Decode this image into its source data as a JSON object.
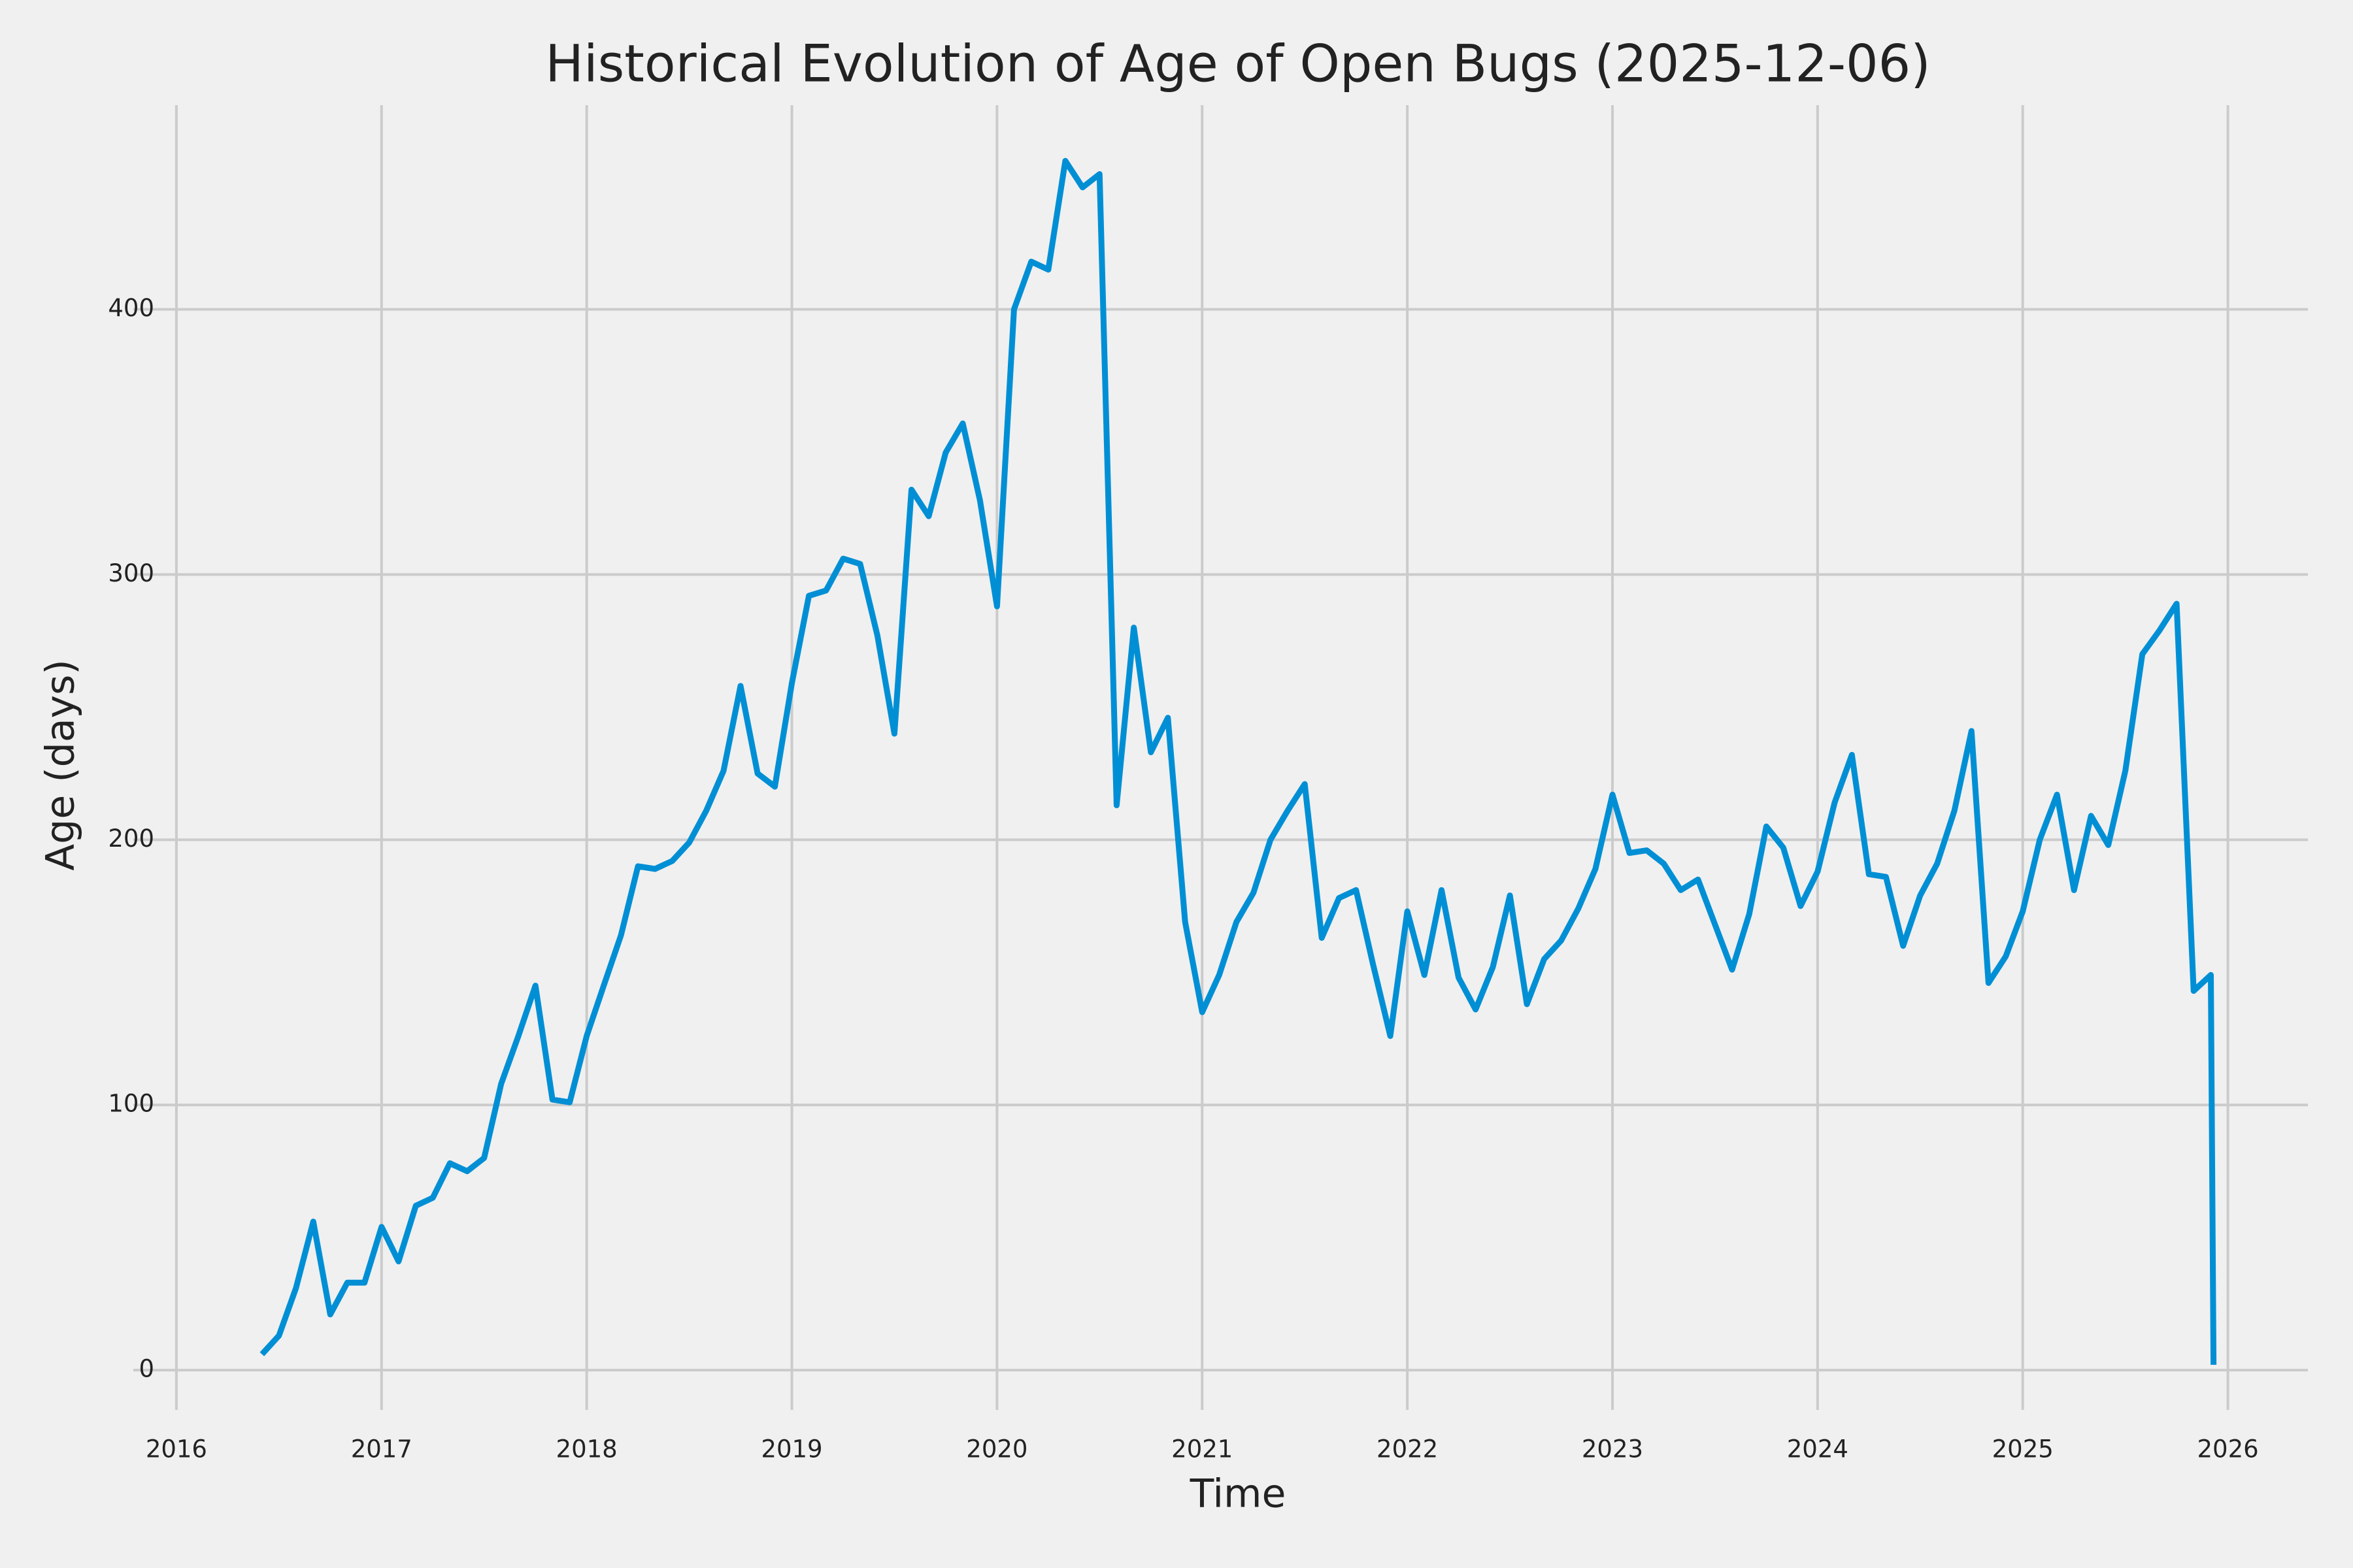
{
  "chart_data": {
    "type": "line",
    "title": "Historical Evolution of Age of Open Bugs (2025-12-06)",
    "x_label": "Time",
    "y_label": "Age (days)",
    "color": "#008fd5",
    "grid": true,
    "xlim": [
      2015.79,
      2026.39
    ],
    "xticks": [
      2016,
      2017,
      2018,
      2019,
      2020,
      2021,
      2022,
      2023,
      2024,
      2025,
      2026
    ],
    "ylim": [
      -15,
      477
    ],
    "yticks": [
      0,
      100,
      200,
      300,
      400
    ],
    "x": [
      2016.417,
      2016.5,
      2016.583,
      2016.667,
      2016.75,
      2016.833,
      2016.917,
      2017,
      2017.083,
      2017.167,
      2017.25,
      2017.333,
      2017.417,
      2017.5,
      2017.583,
      2017.667,
      2017.75,
      2017.833,
      2017.917,
      2018,
      2018.083,
      2018.167,
      2018.25,
      2018.333,
      2018.417,
      2018.5,
      2018.583,
      2018.667,
      2018.75,
      2018.833,
      2018.917,
      2019,
      2019.083,
      2019.167,
      2019.25,
      2019.333,
      2019.417,
      2019.5,
      2019.583,
      2019.667,
      2019.75,
      2019.833,
      2019.917,
      2020,
      2020.083,
      2020.167,
      2020.25,
      2020.333,
      2020.417,
      2020.5,
      2020.583,
      2020.667,
      2020.75,
      2020.833,
      2020.917,
      2021,
      2021.083,
      2021.167,
      2021.25,
      2021.333,
      2021.417,
      2021.5,
      2021.583,
      2021.667,
      2021.75,
      2021.833,
      2021.917,
      2022,
      2022.083,
      2022.167,
      2022.25,
      2022.333,
      2022.417,
      2022.5,
      2022.583,
      2022.667,
      2022.75,
      2022.833,
      2022.917,
      2023,
      2023.083,
      2023.167,
      2023.25,
      2023.333,
      2023.417,
      2023.5,
      2023.583,
      2023.667,
      2023.75,
      2023.833,
      2023.917,
      2024,
      2024.083,
      2024.167,
      2024.25,
      2024.333,
      2024.417,
      2024.5,
      2024.583,
      2024.667,
      2024.75,
      2024.833,
      2024.917,
      2025,
      2025.083,
      2025.167,
      2025.25,
      2025.333,
      2025.417,
      2025.5,
      2025.583,
      2025.667,
      2025.75,
      2025.833,
      2025.917,
      2025.93
    ],
    "values": [
      6,
      13,
      31,
      56,
      21,
      33,
      33,
      54,
      41,
      62,
      65,
      78,
      75,
      80,
      108,
      126,
      145,
      102,
      101,
      126,
      145,
      164,
      190,
      189,
      192,
      199,
      211,
      226,
      258,
      225,
      220,
      259,
      292,
      294,
      306,
      304,
      277,
      240,
      332,
      322,
      346,
      357,
      328,
      288,
      400,
      418,
      415,
      456,
      446,
      451,
      213,
      280,
      233,
      246,
      169,
      135,
      149,
      169,
      180,
      200,
      211,
      221,
      163,
      178,
      181,
      153,
      126,
      173,
      149,
      181,
      148,
      136,
      152,
      179,
      138,
      155,
      162,
      174,
      189,
      217,
      195,
      196,
      191,
      181,
      185,
      168,
      151,
      172,
      205,
      197,
      175,
      188,
      214,
      232,
      187,
      186,
      160,
      179,
      191,
      211,
      241,
      146,
      156,
      173,
      200,
      217,
      181,
      209,
      198,
      226,
      270,
      279,
      289,
      143,
      149,
      2
    ]
  }
}
